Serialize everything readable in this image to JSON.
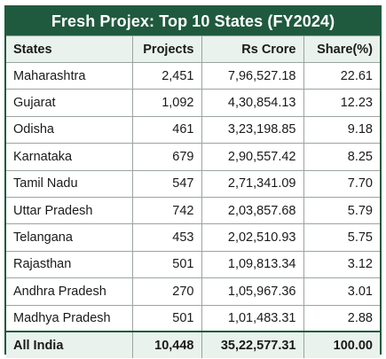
{
  "title": "Fresh Projex: Top 10 States (FY2024)",
  "columns": [
    "States",
    "Projects",
    "Rs Crore",
    "Share(%)"
  ],
  "rows": [
    {
      "state": "Maharashtra",
      "projects": "2,451",
      "rs_crore": "7,96,527.18",
      "share": "22.61"
    },
    {
      "state": "Gujarat",
      "projects": "1,092",
      "rs_crore": "4,30,854.13",
      "share": "12.23"
    },
    {
      "state": "Odisha",
      "projects": "461",
      "rs_crore": "3,23,198.85",
      "share": "9.18"
    },
    {
      "state": "Karnataka",
      "projects": "679",
      "rs_crore": "2,90,557.42",
      "share": "8.25"
    },
    {
      "state": "Tamil Nadu",
      "projects": "547",
      "rs_crore": "2,71,341.09",
      "share": "7.70"
    },
    {
      "state": "Uttar Pradesh",
      "projects": "742",
      "rs_crore": "2,03,857.68",
      "share": "5.79"
    },
    {
      "state": "Telangana",
      "projects": "453",
      "rs_crore": "2,02,510.93",
      "share": "5.75"
    },
    {
      "state": "Rajasthan",
      "projects": "501",
      "rs_crore": "1,09,813.34",
      "share": "3.12"
    },
    {
      "state": "Andhra Pradesh",
      "projects": "270",
      "rs_crore": "1,05,967.36",
      "share": "3.01"
    },
    {
      "state": "Madhya Pradesh",
      "projects": "501",
      "rs_crore": "1,01,483.31",
      "share": "2.88"
    }
  ],
  "total": {
    "state": "All India",
    "projects": "10,448",
    "rs_crore": "35,22,577.31",
    "share": "100.00"
  },
  "colors": {
    "header_bg": "#1f5a3e",
    "header_text": "#ffffff",
    "band_bg": "#e9f2ec"
  }
}
